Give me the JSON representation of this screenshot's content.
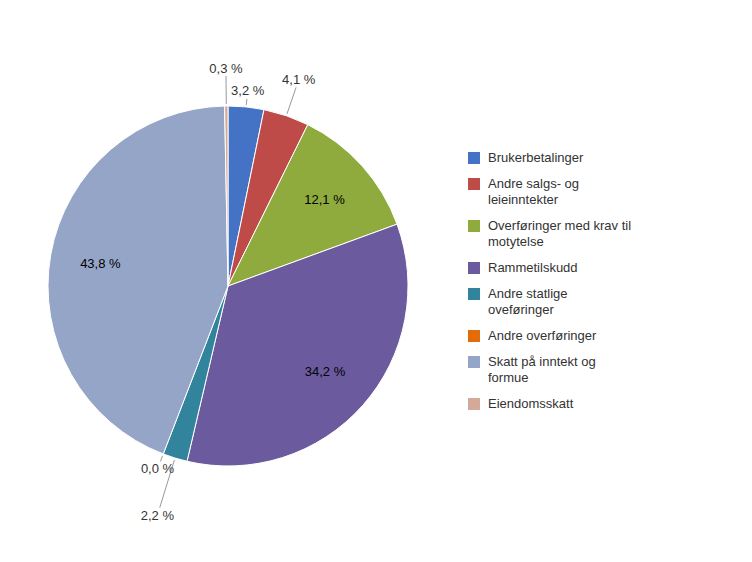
{
  "chart_data": {
    "type": "pie",
    "categories": [
      "Brukerbetalinger",
      "Andre salgs- og\nleieinntekter",
      "Overføringer med krav til\nmotytelse",
      "Rammetilskudd",
      "Andre statlige\noveføringer",
      "Andre overføringer",
      "Skatt på inntekt og\nformue",
      "Eiendomsskatt"
    ],
    "values": [
      3.2,
      4.1,
      12.1,
      34.2,
      2.2,
      0.0,
      43.8,
      0.3
    ],
    "value_labels": [
      "3,2 %",
      "4,1 %",
      "12,1 %",
      "34,2 %",
      "2,2 %",
      "0,0 %",
      "43,8 %",
      "0,3 %"
    ],
    "colors": [
      "#4472c4",
      "#be4b48",
      "#8faa3d",
      "#6b5b9e",
      "#31849b",
      "#e36c09",
      "#95a5c8",
      "#d4a99a"
    ],
    "data_labels": true,
    "legend": "right"
  }
}
